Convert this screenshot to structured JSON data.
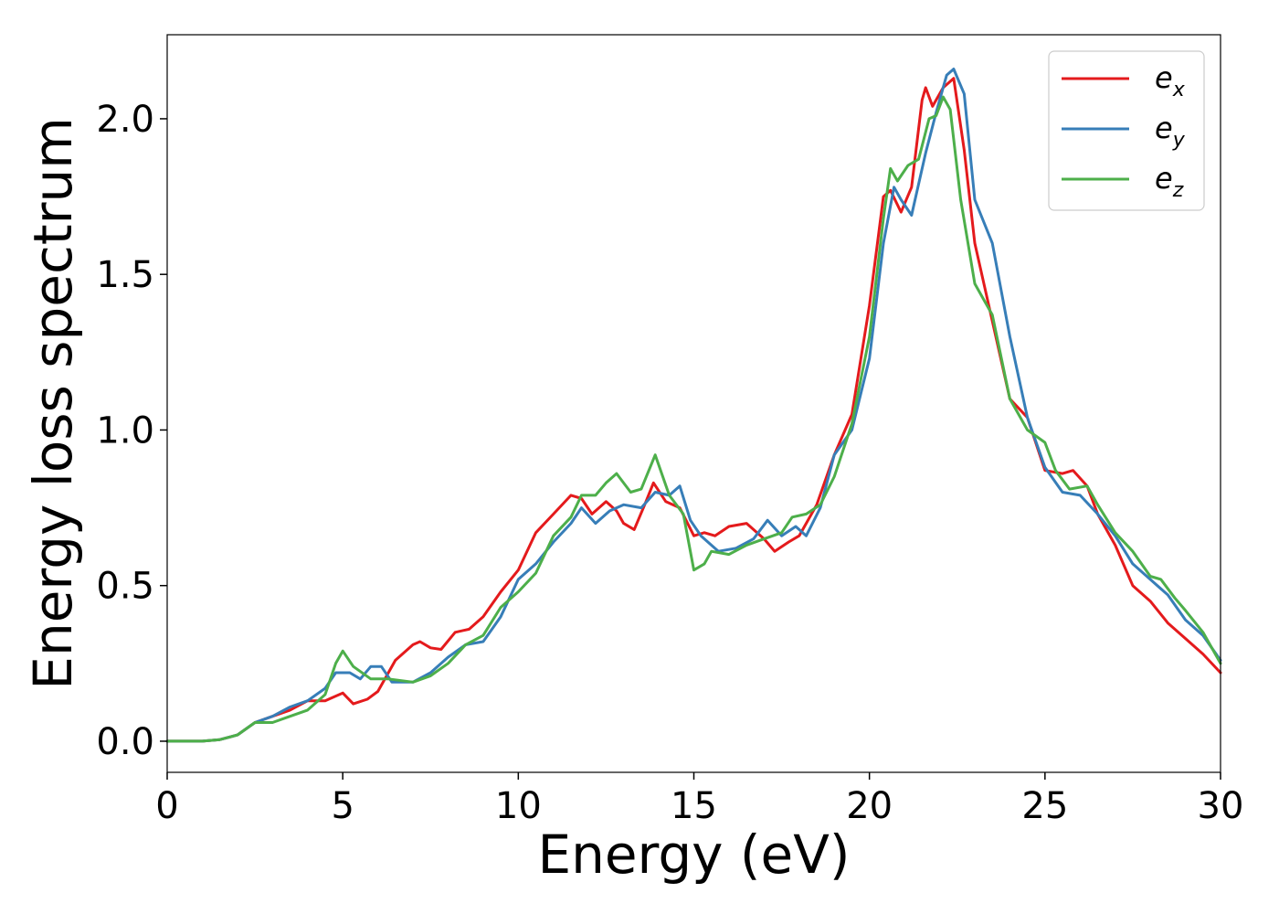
{
  "chart_data": {
    "type": "line",
    "xlabel": "Energy (eV)",
    "ylabel": "Energy loss spectrum",
    "xlim": [
      0,
      30
    ],
    "ylim": [
      -0.1,
      2.27
    ],
    "xticks": [
      "0",
      "5",
      "10",
      "15",
      "20",
      "25",
      "30"
    ],
    "yticks": [
      "0.0",
      "0.5",
      "1.0",
      "1.5",
      "2.0"
    ],
    "grid": false,
    "legend_position": "top-right",
    "series": [
      {
        "name": "e",
        "sub": "x",
        "color": "#e41a1c",
        "points": [
          [
            0,
            0
          ],
          [
            1,
            0
          ],
          [
            1.5,
            0.005
          ],
          [
            2,
            0.02
          ],
          [
            2.5,
            0.06
          ],
          [
            3,
            0.08
          ],
          [
            3.5,
            0.1
          ],
          [
            4,
            0.13
          ],
          [
            4.5,
            0.13
          ],
          [
            5,
            0.155
          ],
          [
            5.3,
            0.12
          ],
          [
            5.7,
            0.135
          ],
          [
            6,
            0.16
          ],
          [
            6.5,
            0.26
          ],
          [
            7,
            0.31
          ],
          [
            7.2,
            0.32
          ],
          [
            7.5,
            0.3
          ],
          [
            7.8,
            0.295
          ],
          [
            8.2,
            0.35
          ],
          [
            8.6,
            0.36
          ],
          [
            9,
            0.4
          ],
          [
            9.5,
            0.48
          ],
          [
            10,
            0.55
          ],
          [
            10.5,
            0.67
          ],
          [
            11,
            0.73
          ],
          [
            11.5,
            0.79
          ],
          [
            11.8,
            0.78
          ],
          [
            12.1,
            0.73
          ],
          [
            12.5,
            0.77
          ],
          [
            12.8,
            0.74
          ],
          [
            13,
            0.7
          ],
          [
            13.3,
            0.68
          ],
          [
            13.6,
            0.76
          ],
          [
            13.85,
            0.83
          ],
          [
            14.2,
            0.77
          ],
          [
            14.6,
            0.75
          ],
          [
            15,
            0.66
          ],
          [
            15.3,
            0.67
          ],
          [
            15.6,
            0.66
          ],
          [
            16,
            0.69
          ],
          [
            16.5,
            0.7
          ],
          [
            17,
            0.65
          ],
          [
            17.3,
            0.61
          ],
          [
            17.7,
            0.64
          ],
          [
            18,
            0.66
          ],
          [
            18.5,
            0.76
          ],
          [
            19,
            0.92
          ],
          [
            19.5,
            1.05
          ],
          [
            20,
            1.4
          ],
          [
            20.4,
            1.75
          ],
          [
            20.6,
            1.77
          ],
          [
            20.9,
            1.7
          ],
          [
            21.2,
            1.78
          ],
          [
            21.5,
            2.06
          ],
          [
            21.6,
            2.1
          ],
          [
            21.8,
            2.04
          ],
          [
            22.1,
            2.1
          ],
          [
            22.4,
            2.13
          ],
          [
            22.7,
            1.9
          ],
          [
            23,
            1.6
          ],
          [
            23.5,
            1.35
          ],
          [
            24,
            1.1
          ],
          [
            24.5,
            1.04
          ],
          [
            25,
            0.87
          ],
          [
            25.5,
            0.86
          ],
          [
            25.8,
            0.87
          ],
          [
            26.2,
            0.82
          ],
          [
            26.5,
            0.73
          ],
          [
            27,
            0.63
          ],
          [
            27.5,
            0.5
          ],
          [
            28,
            0.45
          ],
          [
            28.5,
            0.38
          ],
          [
            29,
            0.33
          ],
          [
            29.5,
            0.28
          ],
          [
            30,
            0.22
          ]
        ]
      },
      {
        "name": "e",
        "sub": "y",
        "color": "#377eb8",
        "points": [
          [
            0,
            0
          ],
          [
            1,
            0
          ],
          [
            1.5,
            0.005
          ],
          [
            2,
            0.02
          ],
          [
            2.5,
            0.06
          ],
          [
            3,
            0.08
          ],
          [
            3.5,
            0.11
          ],
          [
            4,
            0.13
          ],
          [
            4.5,
            0.17
          ],
          [
            4.8,
            0.22
          ],
          [
            5.2,
            0.22
          ],
          [
            5.5,
            0.2
          ],
          [
            5.8,
            0.24
          ],
          [
            6.1,
            0.24
          ],
          [
            6.4,
            0.19
          ],
          [
            7,
            0.19
          ],
          [
            7.5,
            0.22
          ],
          [
            8,
            0.27
          ],
          [
            8.5,
            0.31
          ],
          [
            9,
            0.32
          ],
          [
            9.5,
            0.4
          ],
          [
            10,
            0.52
          ],
          [
            10.5,
            0.57
          ],
          [
            11,
            0.64
          ],
          [
            11.5,
            0.7
          ],
          [
            11.8,
            0.75
          ],
          [
            12.2,
            0.7
          ],
          [
            12.6,
            0.74
          ],
          [
            13,
            0.76
          ],
          [
            13.5,
            0.75
          ],
          [
            13.9,
            0.8
          ],
          [
            14.3,
            0.79
          ],
          [
            14.6,
            0.82
          ],
          [
            14.9,
            0.71
          ],
          [
            15.2,
            0.66
          ],
          [
            15.7,
            0.61
          ],
          [
            16.2,
            0.62
          ],
          [
            16.7,
            0.65
          ],
          [
            17.1,
            0.71
          ],
          [
            17.5,
            0.66
          ],
          [
            17.9,
            0.69
          ],
          [
            18.2,
            0.66
          ],
          [
            18.6,
            0.75
          ],
          [
            19,
            0.92
          ],
          [
            19.5,
            1.0
          ],
          [
            20,
            1.23
          ],
          [
            20.4,
            1.6
          ],
          [
            20.7,
            1.78
          ],
          [
            20.9,
            1.74
          ],
          [
            21.2,
            1.69
          ],
          [
            21.6,
            1.89
          ],
          [
            21.9,
            2.02
          ],
          [
            22.2,
            2.14
          ],
          [
            22.4,
            2.16
          ],
          [
            22.7,
            2.08
          ],
          [
            23,
            1.74
          ],
          [
            23.5,
            1.6
          ],
          [
            24,
            1.3
          ],
          [
            24.5,
            1.04
          ],
          [
            25,
            0.88
          ],
          [
            25.5,
            0.8
          ],
          [
            26,
            0.79
          ],
          [
            26.5,
            0.73
          ],
          [
            27,
            0.66
          ],
          [
            27.5,
            0.57
          ],
          [
            28,
            0.52
          ],
          [
            28.5,
            0.47
          ],
          [
            29,
            0.39
          ],
          [
            29.5,
            0.34
          ],
          [
            30,
            0.26
          ]
        ]
      },
      {
        "name": "e",
        "sub": "z",
        "color": "#4daf4a",
        "points": [
          [
            0,
            0
          ],
          [
            1,
            0
          ],
          [
            1.5,
            0.005
          ],
          [
            2,
            0.02
          ],
          [
            2.5,
            0.06
          ],
          [
            3,
            0.06
          ],
          [
            3.5,
            0.08
          ],
          [
            4,
            0.1
          ],
          [
            4.5,
            0.15
          ],
          [
            4.8,
            0.25
          ],
          [
            5,
            0.29
          ],
          [
            5.3,
            0.24
          ],
          [
            5.8,
            0.2
          ],
          [
            6.3,
            0.2
          ],
          [
            7,
            0.19
          ],
          [
            7.5,
            0.21
          ],
          [
            8,
            0.25
          ],
          [
            8.5,
            0.31
          ],
          [
            9,
            0.34
          ],
          [
            9.5,
            0.43
          ],
          [
            10,
            0.48
          ],
          [
            10.5,
            0.54
          ],
          [
            11,
            0.66
          ],
          [
            11.5,
            0.72
          ],
          [
            11.8,
            0.79
          ],
          [
            12.2,
            0.79
          ],
          [
            12.5,
            0.83
          ],
          [
            12.8,
            0.86
          ],
          [
            13.2,
            0.8
          ],
          [
            13.5,
            0.81
          ],
          [
            13.9,
            0.92
          ],
          [
            14.3,
            0.79
          ],
          [
            14.7,
            0.73
          ],
          [
            15,
            0.55
          ],
          [
            15.3,
            0.57
          ],
          [
            15.5,
            0.61
          ],
          [
            16,
            0.6
          ],
          [
            16.5,
            0.63
          ],
          [
            17,
            0.65
          ],
          [
            17.5,
            0.67
          ],
          [
            17.8,
            0.72
          ],
          [
            18.2,
            0.73
          ],
          [
            18.6,
            0.76
          ],
          [
            19,
            0.85
          ],
          [
            19.5,
            1.02
          ],
          [
            20,
            1.3
          ],
          [
            20.4,
            1.68
          ],
          [
            20.6,
            1.84
          ],
          [
            20.8,
            1.8
          ],
          [
            21.1,
            1.85
          ],
          [
            21.4,
            1.87
          ],
          [
            21.7,
            2.0
          ],
          [
            21.9,
            2.01
          ],
          [
            22.1,
            2.07
          ],
          [
            22.3,
            2.03
          ],
          [
            22.6,
            1.74
          ],
          [
            23,
            1.47
          ],
          [
            23.5,
            1.37
          ],
          [
            24,
            1.1
          ],
          [
            24.5,
            1.0
          ],
          [
            25,
            0.96
          ],
          [
            25.3,
            0.87
          ],
          [
            25.7,
            0.81
          ],
          [
            26.2,
            0.82
          ],
          [
            26.5,
            0.76
          ],
          [
            27,
            0.67
          ],
          [
            27.5,
            0.61
          ],
          [
            28,
            0.53
          ],
          [
            28.3,
            0.52
          ],
          [
            28.7,
            0.46
          ],
          [
            29,
            0.42
          ],
          [
            29.5,
            0.35
          ],
          [
            30,
            0.25
          ]
        ]
      }
    ]
  }
}
